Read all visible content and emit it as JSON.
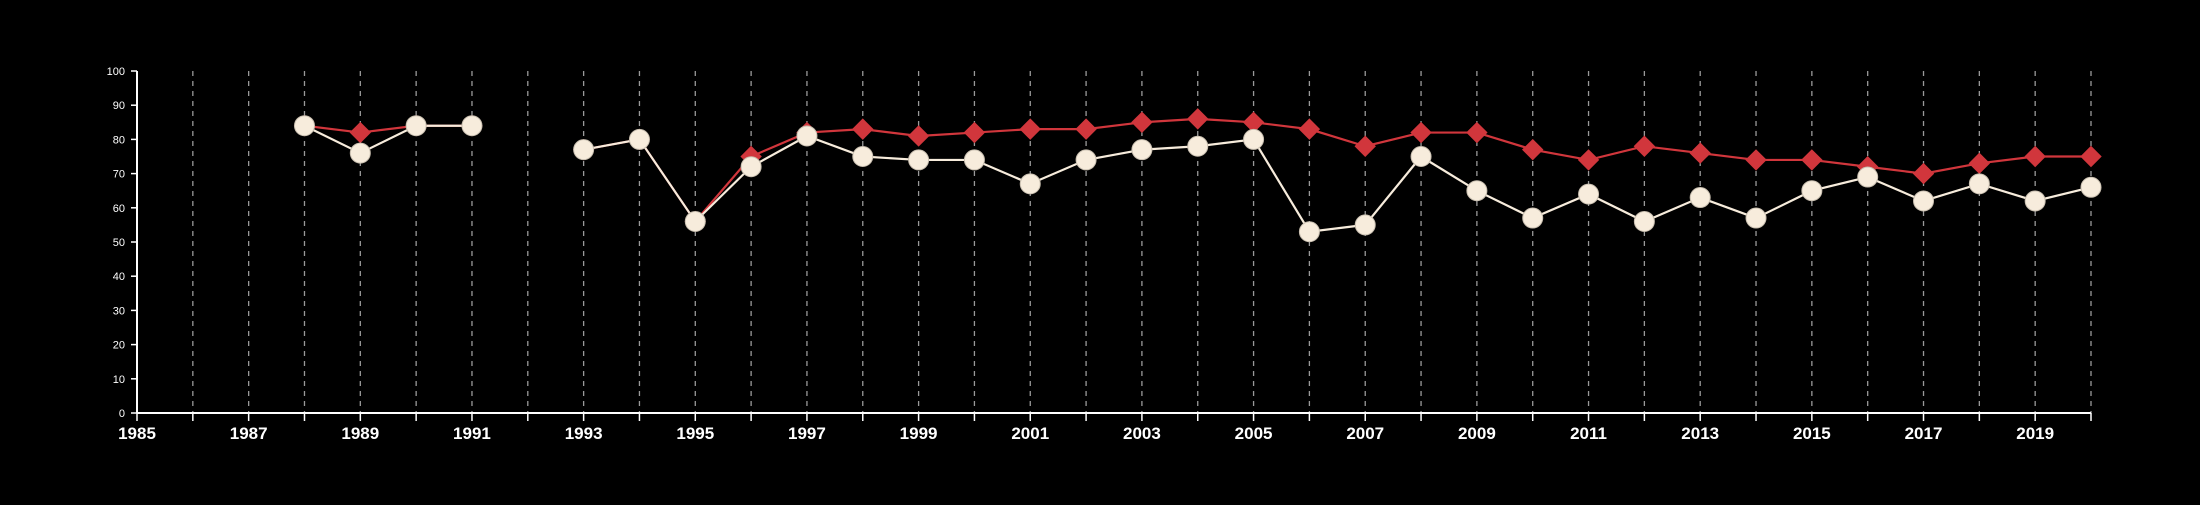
{
  "chart_data": {
    "type": "line",
    "title": "",
    "xlabel": "",
    "ylabel": "",
    "xlim": [
      1985,
      2020
    ],
    "ylim": [
      0,
      100
    ],
    "grid": "vertical dashed",
    "legend": "none",
    "x_ticks": [
      1985,
      1987,
      1989,
      1991,
      1993,
      1995,
      1997,
      1999,
      2001,
      2003,
      2005,
      2007,
      2009,
      2011,
      2013,
      2015,
      2017,
      2019
    ],
    "y_ticks": [
      0,
      10,
      20,
      30,
      40,
      50,
      60,
      70,
      80,
      90,
      100
    ],
    "x": [
      1985,
      1986,
      1987,
      1988,
      1989,
      1990,
      1991,
      1992,
      1993,
      1994,
      1995,
      1996,
      1997,
      1998,
      1999,
      2000,
      2001,
      2002,
      2003,
      2004,
      2005,
      2006,
      2007,
      2008,
      2009,
      2010,
      2011,
      2012,
      2013,
      2014,
      2015,
      2016,
      2017,
      2018,
      2019,
      2020
    ],
    "series": [
      {
        "marker": "diamond",
        "color": "#d1363c",
        "values": [
          null,
          null,
          null,
          84,
          82,
          84,
          84,
          null,
          77,
          80,
          56,
          75,
          82,
          83,
          81,
          82,
          83,
          83,
          85,
          86,
          85,
          83,
          78,
          82,
          82,
          77,
          74,
          78,
          76,
          74,
          74,
          72,
          70,
          73,
          75,
          75
        ]
      },
      {
        "marker": "circle",
        "color": "#f7ecdc",
        "values": [
          null,
          null,
          null,
          84,
          76,
          84,
          84,
          null,
          77,
          80,
          56,
          72,
          81,
          75,
          74,
          74,
          67,
          74,
          77,
          78,
          80,
          53,
          55,
          75,
          65,
          57,
          64,
          56,
          63,
          57,
          65,
          69,
          62,
          67,
          62,
          66
        ]
      }
    ]
  }
}
